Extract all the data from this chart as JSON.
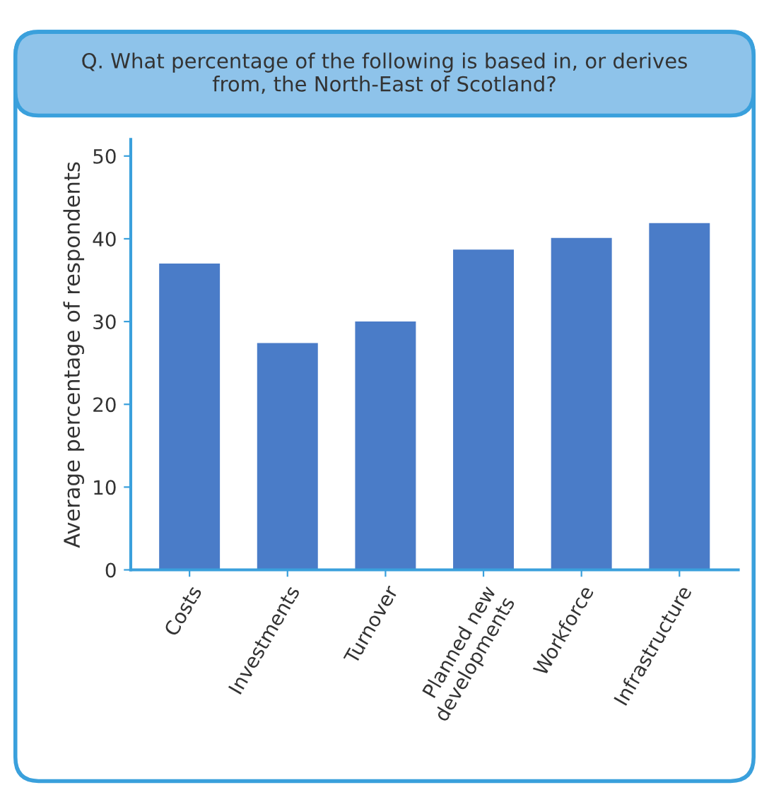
{
  "chart_data": {
    "type": "bar",
    "title": "Q. What percentage of the following is based in, or derives\nfrom, the North-East of Scotland?",
    "ylabel": "Average percentage of respondents",
    "categories": [
      "Costs",
      "Investments",
      "Turnover",
      "Planned new\ndevelopments",
      "Workforce",
      "Infrastructure"
    ],
    "values": [
      37,
      27.4,
      30,
      38.7,
      40.1,
      41.9
    ],
    "color": "#4a7cc8",
    "ylim": [
      0,
      52
    ],
    "yticks": [
      0,
      10,
      20,
      30,
      40,
      50
    ]
  }
}
